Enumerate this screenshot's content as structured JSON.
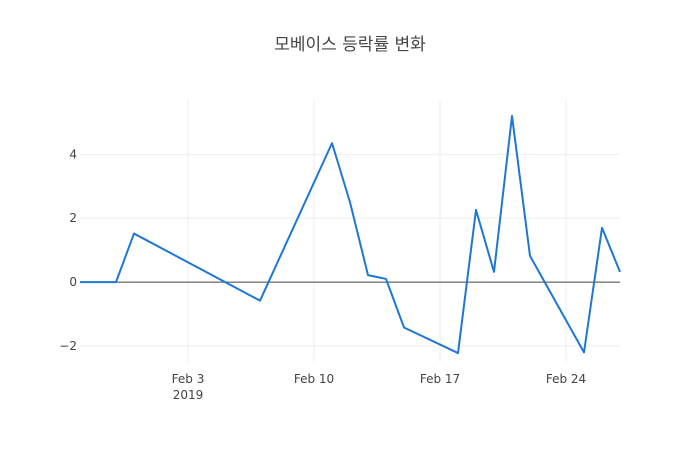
{
  "chart_data": {
    "type": "line",
    "title": "모베이스 등락률 변화",
    "xlabel": "",
    "ylabel": "",
    "x_range": [
      "2019-01-28",
      "2019-02-27"
    ],
    "ylim": [
      -2.5,
      5.7
    ],
    "grid": true,
    "zero_line": true,
    "line_color": "#1f77d4",
    "x_ticks": [
      {
        "date": "2019-02-03",
        "label": "Feb 3",
        "sublabel": "2019"
      },
      {
        "date": "2019-02-10",
        "label": "Feb 10",
        "sublabel": ""
      },
      {
        "date": "2019-02-17",
        "label": "Feb 17",
        "sublabel": ""
      },
      {
        "date": "2019-02-24",
        "label": "Feb 24",
        "sublabel": ""
      }
    ],
    "y_ticks": [
      {
        "value": -2,
        "label": "−2"
      },
      {
        "value": 0,
        "label": "0"
      },
      {
        "value": 2,
        "label": "2"
      },
      {
        "value": 4,
        "label": "4"
      }
    ],
    "series": [
      {
        "x": [
          "2019-01-28",
          "2019-01-29",
          "2019-01-30",
          "2019-01-31",
          "2019-02-07",
          "2019-02-11",
          "2019-02-12",
          "2019-02-13",
          "2019-02-14",
          "2019-02-15",
          "2019-02-18",
          "2019-02-19",
          "2019-02-20",
          "2019-02-21",
          "2019-02-22",
          "2019-02-25",
          "2019-02-26",
          "2019-02-27"
        ],
        "y": [
          0,
          0,
          0,
          1.52,
          -0.58,
          4.35,
          2.5,
          0.22,
          0.1,
          -1.42,
          -2.22,
          2.26,
          0.32,
          5.2,
          0.82,
          -2.2,
          1.7,
          0.32
        ]
      }
    ]
  }
}
